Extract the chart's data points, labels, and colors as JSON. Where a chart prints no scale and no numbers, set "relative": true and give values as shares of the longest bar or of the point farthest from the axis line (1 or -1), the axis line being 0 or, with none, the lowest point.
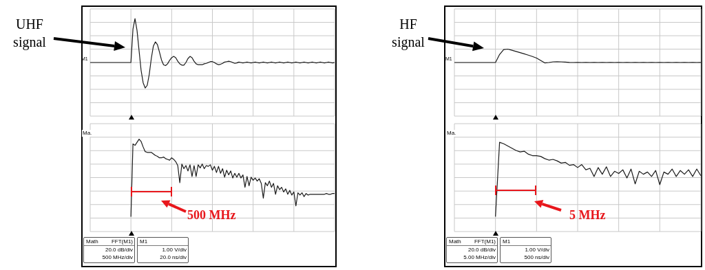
{
  "chart_data": [
    {
      "type": "line",
      "relative": true,
      "grid": true,
      "color": "#1a1a1a",
      "annotations": [
        "UHF signal",
        "M1"
      ],
      "categories": [
        null,
        null,
        null,
        null,
        null,
        null,
        null,
        null,
        null,
        null,
        null,
        null,
        null,
        null,
        null,
        null,
        null,
        null,
        null,
        null,
        null,
        null,
        null,
        null,
        null,
        null,
        null,
        null,
        null,
        null,
        null,
        null,
        null,
        null,
        null,
        null,
        null,
        null,
        null,
        null,
        null,
        null,
        null,
        null,
        null,
        null,
        null,
        null,
        null,
        null,
        null,
        null,
        null,
        null,
        null,
        null,
        null,
        null,
        null,
        null,
        null,
        null,
        null,
        null,
        null,
        null,
        null,
        null,
        null,
        null,
        null,
        null,
        null,
        null,
        null,
        null,
        null,
        null,
        null,
        null,
        null,
        null,
        null,
        null,
        null,
        null,
        null,
        null,
        null,
        null,
        null,
        null,
        null,
        null,
        null,
        null,
        null,
        null,
        null,
        null,
        null,
        null,
        null,
        null,
        null,
        null,
        null,
        null,
        null,
        null,
        null,
        null,
        null,
        null,
        null,
        null,
        null,
        null,
        null,
        null,
        null
      ],
      "values": [
        0,
        0,
        0,
        0,
        0,
        0,
        0,
        0,
        0,
        0,
        0,
        0,
        0,
        0,
        0,
        0,
        0,
        0,
        0,
        0,
        0,
        0.76,
        1,
        0.73,
        0.27,
        -0.18,
        -0.46,
        -0.58,
        -0.52,
        -0.27,
        0.09,
        0.37,
        0.47,
        0.41,
        0.24,
        0.06,
        -0.05,
        -0.07,
        -0.03,
        0.05,
        0.11,
        0.14,
        0.11,
        0.03,
        -0.03,
        -0.06,
        -0.06,
        0,
        0.09,
        0.14,
        0.11,
        0.03,
        -0.03,
        -0.05,
        -0.05,
        -0.05,
        -0.03,
        -0.02,
        0,
        0.02,
        0.02,
        0,
        -0.03,
        -0.05,
        -0.04,
        -0.02,
        0.01,
        0.02,
        0.03,
        0.02,
        0,
        -0.02,
        -0.01,
        0.01,
        0,
        -0.01,
        0,
        0.01,
        0,
        -0.01,
        0,
        0.01,
        0,
        -0.01,
        0,
        0.01,
        0,
        -0.01,
        0,
        0.01,
        0,
        -0.01,
        0,
        0.01,
        0,
        -0.01,
        0,
        0.01,
        0,
        -0.01,
        0,
        0.01,
        0,
        -0.01,
        0,
        0.01,
        0,
        -0.01,
        0,
        0.01,
        0,
        -0.01,
        0,
        0.01,
        0,
        -0.01,
        0,
        0.01,
        0,
        -0.01,
        0
      ]
    },
    {
      "type": "line",
      "relative": true,
      "grid": true,
      "color": "#1a1a1a",
      "annotations": [
        "Ma.",
        "500 MHz",
        "Math",
        "FFT(M1)",
        "20.0 dB/div",
        "500 MHz/div",
        "M1",
        "1.00 V/div",
        "20.0 ns/div"
      ],
      "categories": [
        null,
        null,
        null,
        null,
        null,
        null,
        null,
        null,
        null,
        null,
        null,
        null,
        null,
        null,
        null,
        null,
        null,
        null,
        null,
        null,
        null,
        null,
        null,
        null,
        null,
        null,
        null,
        null,
        null,
        null,
        null,
        null,
        null,
        null,
        null,
        null,
        null,
        null,
        null,
        null,
        null,
        null,
        null,
        null,
        null,
        null,
        null,
        null,
        null,
        null,
        null,
        null,
        null,
        null,
        null,
        null,
        null,
        null,
        null,
        null,
        null,
        null,
        null,
        null,
        null,
        null,
        null,
        null,
        null,
        null,
        null,
        null,
        null,
        null,
        null,
        null,
        null,
        null,
        null,
        null,
        null,
        null,
        null,
        null,
        null,
        null,
        null,
        null,
        null,
        null,
        null,
        null,
        null,
        null,
        null,
        null,
        null,
        null,
        null,
        null,
        null,
        null,
        null,
        null,
        null,
        null,
        null,
        null,
        null,
        null,
        null,
        null,
        null,
        null,
        null,
        null,
        null,
        null,
        null,
        null,
        null
      ],
      "values": [
        null,
        null,
        null,
        null,
        null,
        null,
        null,
        null,
        null,
        null,
        null,
        null,
        null,
        null,
        null,
        null,
        null,
        null,
        null,
        null,
        0,
        0.94,
        0.92,
        0.96,
        1,
        0.97,
        0.9,
        0.84,
        0.83,
        0.83,
        0.83,
        0.81,
        0.79,
        0.78,
        0.76,
        0.76,
        0.77,
        0.75,
        0.74,
        0.73,
        0.76,
        0.74,
        0.71,
        0.66,
        0.44,
        0.68,
        0.62,
        0.66,
        0.59,
        0.67,
        0.52,
        0.66,
        0.52,
        0.67,
        0.63,
        0.68,
        0.62,
        0.66,
        0.65,
        0.67,
        0.6,
        0.65,
        0.57,
        0.65,
        0.56,
        0.62,
        0.51,
        0.6,
        0.54,
        0.59,
        0.5,
        0.56,
        0.51,
        0.56,
        0.5,
        0.54,
        0.38,
        0.52,
        0.4,
        0.51,
        0.47,
        0.5,
        0.46,
        0.49,
        0.43,
        0.24,
        0.44,
        0.4,
        0.46,
        0.38,
        0.43,
        0.29,
        0.4,
        0.35,
        0.38,
        0.32,
        0.36,
        0.29,
        0.34,
        0.28,
        0.32,
        0.14,
        0.31,
        0.28,
        0.31,
        0.26,
        0.3,
        0.28,
        0.29,
        0.29,
        0.29,
        0.29,
        0.29,
        0.29,
        0.29,
        0.29,
        0.3,
        0.29,
        0.29,
        0.3,
        0.3
      ]
    },
    {
      "type": "line",
      "relative": true,
      "grid": true,
      "color": "#1a1a1a",
      "annotations": [
        "HF signal",
        "M1"
      ],
      "categories": [
        null,
        null,
        null,
        null,
        null,
        null,
        null,
        null,
        null,
        null,
        null,
        null,
        null,
        null,
        null,
        null,
        null,
        null,
        null,
        null,
        null,
        null,
        null,
        null,
        null,
        null,
        null,
        null,
        null,
        null,
        null,
        null,
        null,
        null,
        null,
        null,
        null,
        null,
        null,
        null,
        null,
        null,
        null,
        null,
        null,
        null,
        null,
        null,
        null,
        null,
        null,
        null,
        null,
        null,
        null,
        null,
        null,
        null,
        null,
        null,
        null
      ],
      "values": [
        0,
        0,
        0,
        0,
        0,
        0,
        0,
        0,
        0,
        0,
        0,
        0.6,
        0.97,
        1,
        0.92,
        0.83,
        0.74,
        0.65,
        0.55,
        0.45,
        0.33,
        0.15,
        -0.03,
        0,
        0.05,
        0.06,
        0.05,
        0.03,
        0.01,
        0,
        0.01,
        0,
        0.01,
        0,
        0.01,
        0,
        0.01,
        0,
        0.01,
        0,
        0.01,
        0,
        0.01,
        0,
        0.01,
        0,
        0.01,
        0,
        0.01,
        0,
        0.01,
        0,
        0.01,
        0,
        0.01,
        0,
        0.01,
        0,
        0.01,
        0,
        0.01
      ]
    },
    {
      "type": "line",
      "relative": true,
      "grid": true,
      "color": "#1a1a1a",
      "annotations": [
        "Ma.",
        "5 MHz",
        "Math",
        "FFT(M1)",
        "20.0 dB/div",
        "5.00 MHz/div",
        "M1",
        "1.00 V/div",
        "500 ns/div"
      ],
      "categories": [
        null,
        null,
        null,
        null,
        null,
        null,
        null,
        null,
        null,
        null,
        null,
        null,
        null,
        null,
        null,
        null,
        null,
        null,
        null,
        null,
        null,
        null,
        null,
        null,
        null,
        null,
        null,
        null,
        null,
        null,
        null,
        null,
        null,
        null,
        null,
        null,
        null,
        null,
        null,
        null,
        null,
        null,
        null,
        null,
        null,
        null,
        null,
        null,
        null,
        null,
        null,
        null,
        null,
        null,
        null,
        null,
        null,
        null,
        null,
        null,
        null
      ],
      "values": [
        null,
        null,
        null,
        null,
        null,
        null,
        null,
        null,
        null,
        null,
        0,
        1,
        0.98,
        0.95,
        0.92,
        0.89,
        0.87,
        0.88,
        0.84,
        0.82,
        0.82,
        0.81,
        0.78,
        0.76,
        0.77,
        0.75,
        0.72,
        0.73,
        0.69,
        0.7,
        0.66,
        0.7,
        0.63,
        0.65,
        0.54,
        0.66,
        0.57,
        0.67,
        0.54,
        0.61,
        0.58,
        0.63,
        0.52,
        0.64,
        0.44,
        0.61,
        0.57,
        0.6,
        0.54,
        0.62,
        0.43,
        0.6,
        0.57,
        0.64,
        0.54,
        0.62,
        0.57,
        0.63,
        0.54,
        0.64,
        0.55
      ]
    }
  ]
}
